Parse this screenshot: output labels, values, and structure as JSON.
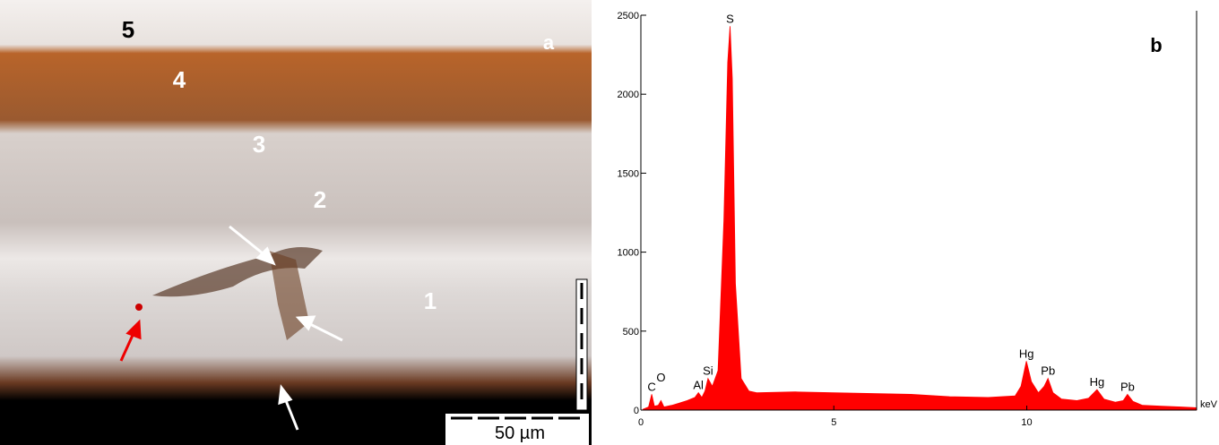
{
  "panel_a": {
    "label": "a",
    "layers": [
      "1",
      "2",
      "3",
      "4",
      "5"
    ],
    "scale_bar": "50 µm"
  },
  "chart_data": {
    "type": "area",
    "panel_label": "b",
    "x_unit": "keV",
    "color": "#ff0000",
    "x": [
      0.05,
      0.2,
      0.28,
      0.35,
      0.45,
      0.52,
      0.6,
      0.8,
      1.0,
      1.2,
      1.4,
      1.49,
      1.58,
      1.66,
      1.74,
      1.85,
      2.0,
      2.15,
      2.25,
      2.31,
      2.37,
      2.45,
      2.6,
      2.8,
      3.0,
      4.0,
      5.0,
      6.0,
      7.0,
      8.0,
      9.0,
      9.7,
      9.85,
      9.99,
      10.12,
      10.3,
      10.45,
      10.55,
      10.68,
      10.9,
      11.3,
      11.6,
      11.82,
      12.0,
      12.3,
      12.5,
      12.61,
      12.75,
      13.0,
      13.5,
      14.0,
      14.4
    ],
    "values": [
      5,
      20,
      100,
      25,
      30,
      60,
      20,
      30,
      45,
      60,
      80,
      110,
      80,
      120,
      200,
      150,
      250,
      1200,
      2200,
      2430,
      2100,
      800,
      200,
      120,
      110,
      115,
      110,
      105,
      100,
      85,
      80,
      90,
      150,
      310,
      180,
      110,
      150,
      200,
      110,
      70,
      60,
      75,
      130,
      70,
      50,
      60,
      100,
      55,
      30,
      25,
      20,
      15
    ],
    "xlim": [
      0,
      14.4
    ],
    "ylim": [
      0,
      2500
    ],
    "xticks": [
      0,
      5,
      10
    ],
    "yticks": [
      0,
      500,
      1000,
      1500,
      2000,
      2500
    ],
    "annotations": [
      {
        "text": "C",
        "x": 0.28,
        "y": 100
      },
      {
        "text": "O",
        "x": 0.52,
        "y": 160
      },
      {
        "text": "Al",
        "x": 1.49,
        "y": 110
      },
      {
        "text": "Si",
        "x": 1.74,
        "y": 200
      },
      {
        "text": "S",
        "x": 2.31,
        "y": 2430
      },
      {
        "text": "Hg",
        "x": 9.99,
        "y": 310
      },
      {
        "text": "Pb",
        "x": 10.55,
        "y": 200
      },
      {
        "text": "Hg",
        "x": 11.82,
        "y": 130
      },
      {
        "text": "Pb",
        "x": 12.61,
        "y": 100
      }
    ]
  }
}
